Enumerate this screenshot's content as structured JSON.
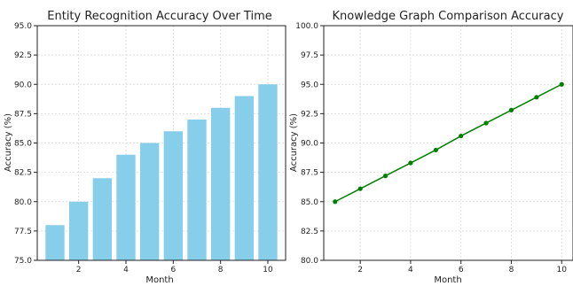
{
  "chart_data": [
    {
      "type": "bar",
      "title": "Entity Recognition Accuracy Over Time",
      "xlabel": "Month",
      "ylabel": "Accuracy (%)",
      "x": [
        1,
        2,
        3,
        4,
        5,
        6,
        7,
        8,
        9,
        10
      ],
      "values": [
        78,
        80,
        82,
        84,
        85,
        86,
        87,
        88,
        89,
        90
      ],
      "ylim": [
        75,
        95
      ],
      "yticks": [
        "75.0",
        "77.5",
        "80.0",
        "82.5",
        "85.0",
        "87.5",
        "90.0",
        "92.5",
        "95.0"
      ],
      "xticks": [
        "2",
        "4",
        "6",
        "8",
        "10"
      ],
      "grid": true,
      "color": "#87CEEB"
    },
    {
      "type": "line",
      "title": "Knowledge Graph Comparison Accuracy",
      "xlabel": "Month",
      "ylabel": "Accuracy (%)",
      "x": [
        1,
        2,
        3,
        4,
        5,
        6,
        7,
        8,
        9,
        10
      ],
      "values": [
        85.0,
        86.1,
        87.2,
        88.3,
        89.4,
        90.6,
        91.7,
        92.8,
        93.9,
        95.0
      ],
      "ylim": [
        80,
        100
      ],
      "yticks": [
        "80.0",
        "82.5",
        "85.0",
        "87.5",
        "90.0",
        "92.5",
        "95.0",
        "97.5",
        "100.0"
      ],
      "xticks": [
        "2",
        "4",
        "6",
        "8",
        "10"
      ],
      "grid": true,
      "color": "#008000",
      "marker": "circle"
    }
  ]
}
